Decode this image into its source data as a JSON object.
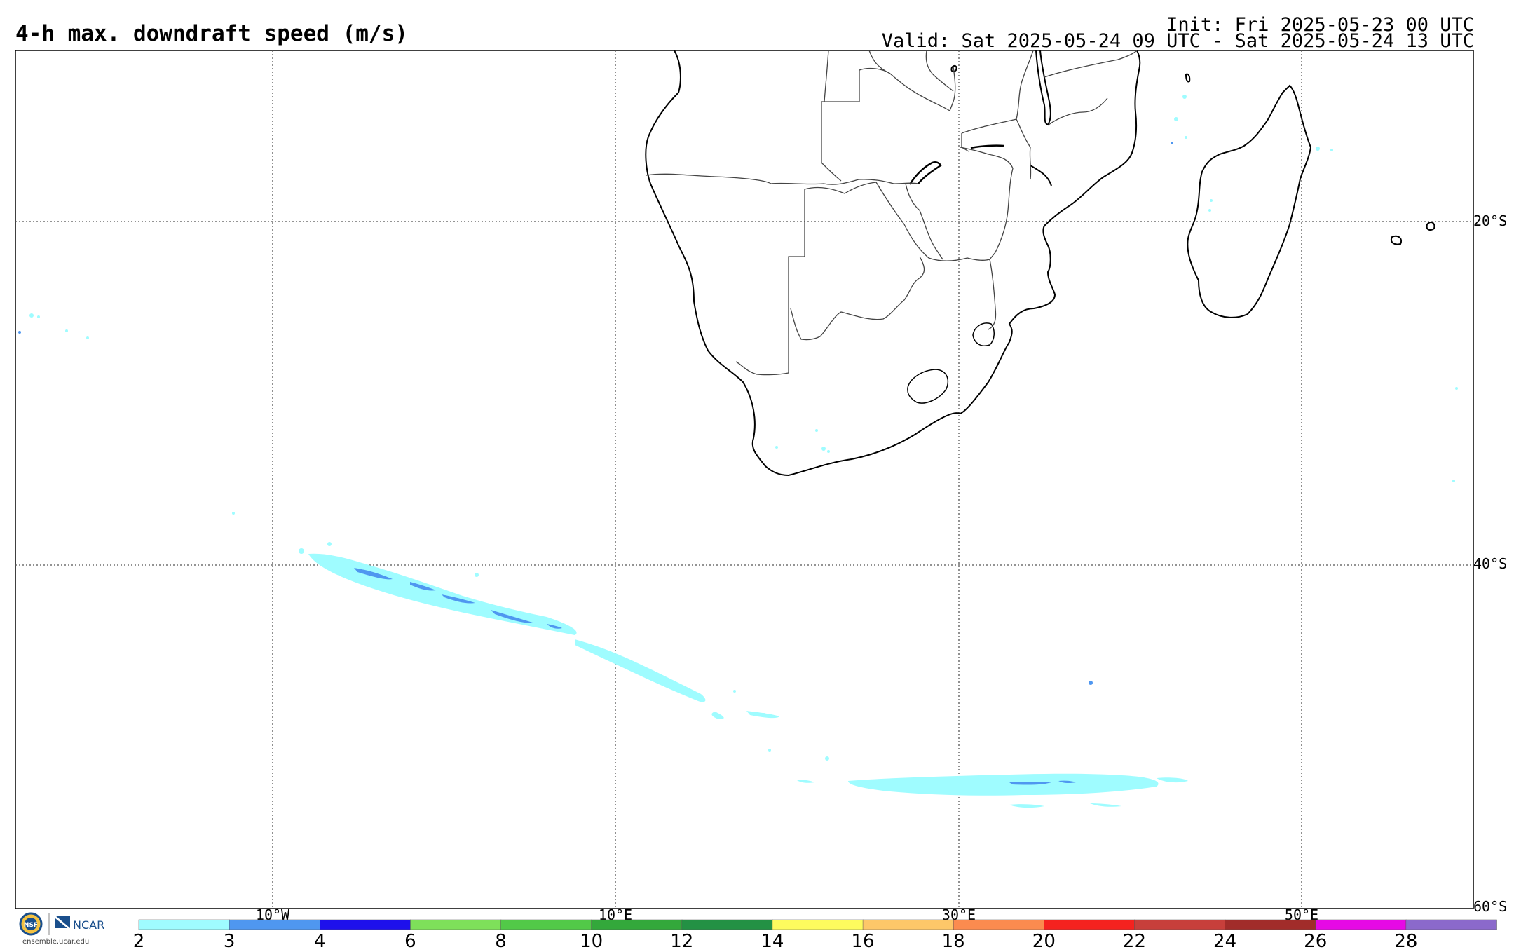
{
  "header": {
    "title": "4-h max. downdraft speed (m/s)",
    "init": "Init: Fri 2025-05-23 00 UTC",
    "valid": "Valid: Sat 2025-05-24 09 UTC - Sat 2025-05-24 13 UTC"
  },
  "axes": {
    "lon_labels": [
      "10°W",
      "10°E",
      "30°E",
      "50°E"
    ],
    "lat_labels": [
      "20°S",
      "40°S",
      "60°S"
    ]
  },
  "colorbar": {
    "ticks": [
      "2",
      "3",
      "4",
      "6",
      "8",
      "10",
      "12",
      "14",
      "16",
      "18",
      "20",
      "22",
      "24",
      "26",
      "28"
    ],
    "colors": [
      "#9ffcff",
      "#4f97f0",
      "#1e10ec",
      "#7ee05a",
      "#52c948",
      "#33a83b",
      "#239144",
      "#fdfb5e",
      "#fdc769",
      "#fb8b4f",
      "#f5221f",
      "#c73f3b",
      "#a12c2a",
      "#e609e5",
      "#8b69cb"
    ]
  },
  "logos": {
    "nsf": "NSF",
    "ncar": "NCAR",
    "url": "ensemble.ucar.edu"
  }
}
